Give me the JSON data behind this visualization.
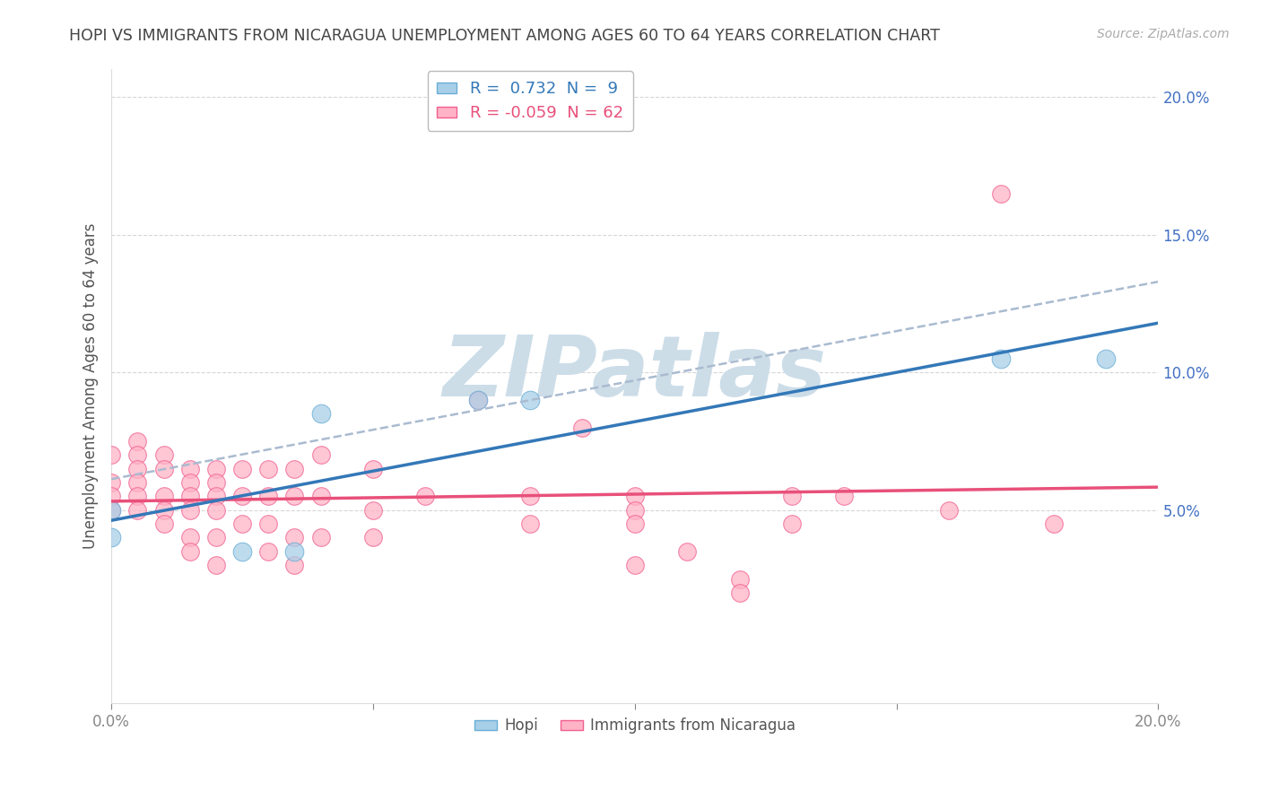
{
  "title": "HOPI VS IMMIGRANTS FROM NICARAGUA UNEMPLOYMENT AMONG AGES 60 TO 64 YEARS CORRELATION CHART",
  "source": "Source: ZipAtlas.com",
  "ylabel": "Unemployment Among Ages 60 to 64 years",
  "xlim": [
    0.0,
    0.2
  ],
  "ylim": [
    -0.02,
    0.21
  ],
  "xticks": [
    0.0,
    0.05,
    0.1,
    0.15,
    0.2
  ],
  "yticks": [
    0.05,
    0.1,
    0.15,
    0.2
  ],
  "xticklabels": [
    "0.0%",
    "",
    "",
    "",
    "20.0%"
  ],
  "yticklabels": [
    "5.0%",
    "10.0%",
    "15.0%",
    "20.0%"
  ],
  "hopi_R": 0.732,
  "hopi_N": 9,
  "nicaragua_R": -0.059,
  "nicaragua_N": 62,
  "hopi_color": "#a8cfe8",
  "nicaragua_color": "#ffb3c6",
  "hopi_edge_color": "#6aaed6",
  "nicaragua_edge_color": "#f06090",
  "hopi_line_color": "#3378b8",
  "nicaragua_line_color": "#e8507a",
  "dash_line_color": "#aabbd0",
  "watermark": "ZIPatlas",
  "watermark_color": "#ccdde8",
  "background_color": "#ffffff",
  "grid_color": "#cccccc",
  "ytick_color": "#4472c4",
  "xtick_color": "#888888",
  "title_color": "#444444",
  "ylabel_color": "#555555",
  "hopi_points": [
    [
      0.0,
      0.04
    ],
    [
      0.0,
      0.05
    ],
    [
      0.025,
      0.035
    ],
    [
      0.035,
      0.035
    ],
    [
      0.04,
      0.085
    ],
    [
      0.07,
      0.09
    ],
    [
      0.08,
      0.09
    ],
    [
      0.17,
      0.105
    ],
    [
      0.19,
      0.105
    ]
  ],
  "nicaragua_points": [
    [
      0.0,
      0.07
    ],
    [
      0.0,
      0.06
    ],
    [
      0.0,
      0.055
    ],
    [
      0.0,
      0.05
    ],
    [
      0.005,
      0.075
    ],
    [
      0.005,
      0.07
    ],
    [
      0.005,
      0.065
    ],
    [
      0.005,
      0.06
    ],
    [
      0.005,
      0.055
    ],
    [
      0.005,
      0.05
    ],
    [
      0.01,
      0.07
    ],
    [
      0.01,
      0.065
    ],
    [
      0.01,
      0.055
    ],
    [
      0.01,
      0.05
    ],
    [
      0.01,
      0.045
    ],
    [
      0.015,
      0.065
    ],
    [
      0.015,
      0.06
    ],
    [
      0.015,
      0.055
    ],
    [
      0.015,
      0.05
    ],
    [
      0.015,
      0.04
    ],
    [
      0.015,
      0.035
    ],
    [
      0.02,
      0.065
    ],
    [
      0.02,
      0.06
    ],
    [
      0.02,
      0.055
    ],
    [
      0.02,
      0.05
    ],
    [
      0.02,
      0.04
    ],
    [
      0.02,
      0.03
    ],
    [
      0.025,
      0.065
    ],
    [
      0.025,
      0.055
    ],
    [
      0.025,
      0.045
    ],
    [
      0.03,
      0.065
    ],
    [
      0.03,
      0.055
    ],
    [
      0.03,
      0.045
    ],
    [
      0.03,
      0.035
    ],
    [
      0.035,
      0.065
    ],
    [
      0.035,
      0.055
    ],
    [
      0.035,
      0.04
    ],
    [
      0.035,
      0.03
    ],
    [
      0.04,
      0.07
    ],
    [
      0.04,
      0.055
    ],
    [
      0.04,
      0.04
    ],
    [
      0.05,
      0.065
    ],
    [
      0.05,
      0.05
    ],
    [
      0.05,
      0.04
    ],
    [
      0.06,
      0.055
    ],
    [
      0.07,
      0.09
    ],
    [
      0.08,
      0.055
    ],
    [
      0.08,
      0.045
    ],
    [
      0.09,
      0.08
    ],
    [
      0.1,
      0.055
    ],
    [
      0.1,
      0.05
    ],
    [
      0.1,
      0.045
    ],
    [
      0.1,
      0.03
    ],
    [
      0.11,
      0.035
    ],
    [
      0.12,
      0.025
    ],
    [
      0.12,
      0.02
    ],
    [
      0.13,
      0.055
    ],
    [
      0.13,
      0.045
    ],
    [
      0.14,
      0.055
    ],
    [
      0.16,
      0.05
    ],
    [
      0.17,
      0.165
    ],
    [
      0.18,
      0.045
    ]
  ]
}
